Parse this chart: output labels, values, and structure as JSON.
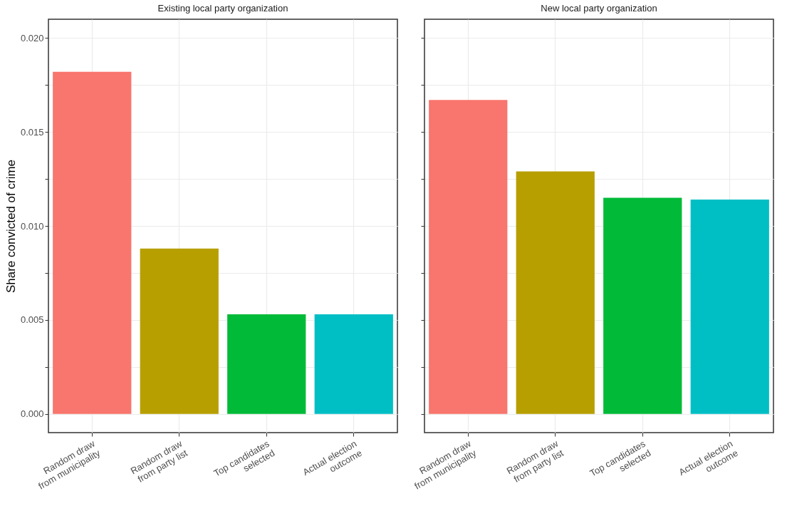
{
  "chart_data": [
    {
      "type": "bar",
      "title": "Existing local party organization",
      "ylabel": "Share convicted of crime",
      "categories": [
        "Random draw\nfrom municipality",
        "Random draw\nfrom party list",
        "Top candidates\nselected",
        "Actual election\noutcome"
      ],
      "values": [
        0.0182,
        0.0088,
        0.0053,
        0.0053
      ],
      "colors": [
        "#f8766d",
        "#b79f00",
        "#00ba38",
        "#00bfc4"
      ],
      "ylim": [
        -0.001,
        0.021
      ],
      "yticks": [
        {
          "value": 0,
          "label": "0.000"
        },
        {
          "value": 0.0025,
          "label": null
        },
        {
          "value": 0.005,
          "label": "0.005"
        },
        {
          "value": 0.0075,
          "label": null
        },
        {
          "value": 0.01,
          "label": "0.010"
        },
        {
          "value": 0.0125,
          "label": null
        },
        {
          "value": 0.015,
          "label": "0.015"
        },
        {
          "value": 0.0175,
          "label": null
        },
        {
          "value": 0.02,
          "label": "0.020"
        }
      ],
      "grid": true
    },
    {
      "type": "bar",
      "title": "New local party organization",
      "categories": [
        "Random draw\nfrom municipality",
        "Random draw\nfrom party list",
        "Top candidates\nselected",
        "Actual election\noutcome"
      ],
      "values": [
        0.0167,
        0.0129,
        0.0115,
        0.0114
      ],
      "colors": [
        "#f8766d",
        "#b79f00",
        "#00ba38",
        "#00bfc4"
      ],
      "ylim": [
        -0.001,
        0.021
      ],
      "yticks": [
        {
          "value": 0,
          "label": null
        },
        {
          "value": 0.0025,
          "label": null
        },
        {
          "value": 0.005,
          "label": null
        },
        {
          "value": 0.0075,
          "label": null
        },
        {
          "value": 0.01,
          "label": null
        },
        {
          "value": 0.0125,
          "label": null
        },
        {
          "value": 0.015,
          "label": null
        },
        {
          "value": 0.0175,
          "label": null
        },
        {
          "value": 0.02,
          "label": null
        }
      ],
      "grid": true,
      "tick_labels": "x"
    }
  ]
}
